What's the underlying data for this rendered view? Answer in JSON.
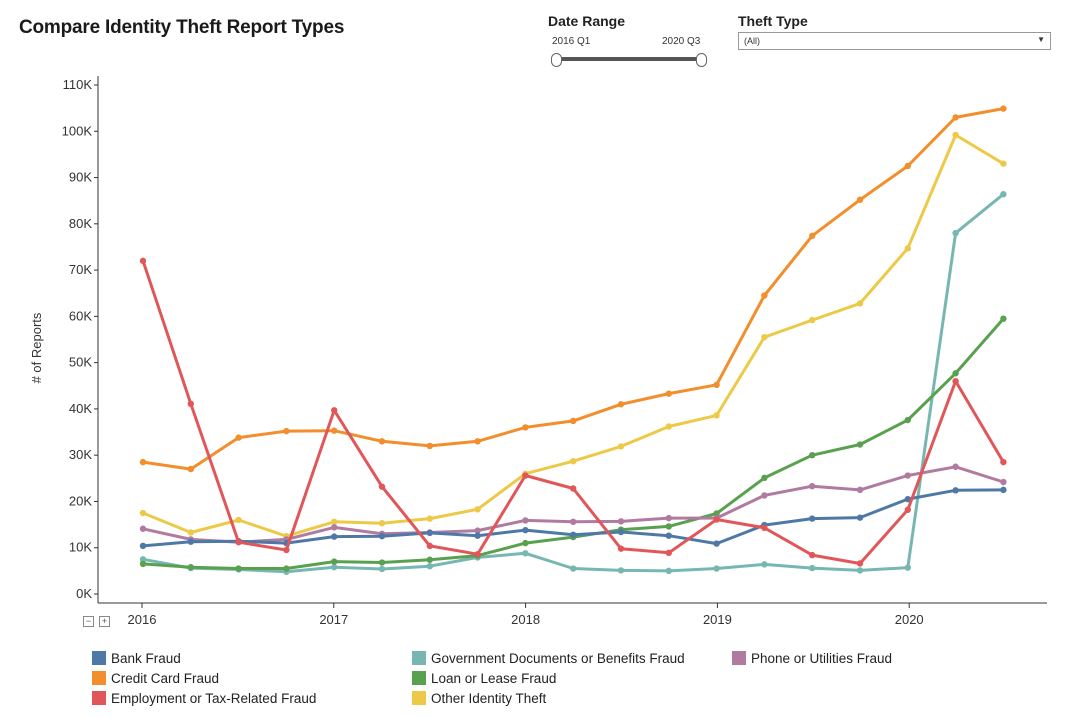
{
  "title": "Compare Identity Theft Report Types",
  "controls": {
    "date_range_label": "Date Range",
    "range_start": "2016 Q1",
    "range_end": "2020 Q3",
    "theft_type_label": "Theft Type",
    "theft_type_value": "(All)"
  },
  "chart_data": {
    "type": "line",
    "ylabel": "# of Reports",
    "xlabel": "",
    "ylim": [
      0,
      110000
    ],
    "y_ticks": [
      0,
      10000,
      20000,
      30000,
      40000,
      50000,
      60000,
      70000,
      80000,
      90000,
      100000,
      110000
    ],
    "y_tick_labels": [
      "0K",
      "10K",
      "20K",
      "30K",
      "40K",
      "50K",
      "60K",
      "70K",
      "80K",
      "90K",
      "100K",
      "110K"
    ],
    "x_tick_labels": [
      "2016",
      "2017",
      "2018",
      "2019",
      "2020"
    ],
    "x": [
      "2016 Q1",
      "2016 Q2",
      "2016 Q3",
      "2016 Q4",
      "2017 Q1",
      "2017 Q2",
      "2017 Q3",
      "2017 Q4",
      "2018 Q1",
      "2018 Q2",
      "2018 Q3",
      "2018 Q4",
      "2019 Q1",
      "2019 Q2",
      "2019 Q3",
      "2019 Q4",
      "2020 Q1",
      "2020 Q2",
      "2020 Q3"
    ],
    "grid": false,
    "legend_position": "bottom",
    "series": [
      {
        "name": "Credit Card Fraud",
        "color": "#f28e2b",
        "values": [
          28500,
          27000,
          33800,
          35200,
          35300,
          33000,
          32000,
          33000,
          36000,
          37400,
          41000,
          43300,
          45200,
          64500,
          77400,
          85200,
          92500,
          103000,
          104900
        ]
      },
      {
        "name": "Other Identity Theft",
        "color": "#edc948",
        "values": [
          17500,
          13300,
          16000,
          12500,
          15600,
          15300,
          16300,
          18300,
          26000,
          28700,
          31900,
          36200,
          38600,
          55500,
          59200,
          62800,
          74700,
          99200,
          93000
        ]
      },
      {
        "name": "Government Documents or Benefits Fraud",
        "color": "#76b7b2",
        "values": [
          7500,
          5600,
          5300,
          4800,
          5800,
          5400,
          6000,
          7900,
          8800,
          5500,
          5100,
          5000,
          5500,
          6400,
          5600,
          5100,
          5700,
          78000,
          86400
        ]
      },
      {
        "name": "Loan or Lease Fraud",
        "color": "#59a14f",
        "values": [
          6500,
          5800,
          5500,
          5500,
          7000,
          6800,
          7400,
          8300,
          11000,
          12300,
          13900,
          14600,
          17400,
          25100,
          30000,
          32300,
          37600,
          47700,
          59500
        ]
      },
      {
        "name": "Phone or Utilities Fraud",
        "color": "#b07aa1",
        "values": [
          14100,
          11800,
          11200,
          11800,
          14400,
          13000,
          13300,
          13700,
          15900,
          15600,
          15700,
          16400,
          16400,
          21300,
          23300,
          22500,
          25600,
          27500,
          24200
        ]
      },
      {
        "name": "Bank Fraud",
        "color": "#4e79a7",
        "values": [
          10400,
          11300,
          11400,
          11000,
          12400,
          12500,
          13200,
          12600,
          13800,
          12800,
          13400,
          12600,
          10900,
          14900,
          16300,
          16500,
          20500,
          22400,
          22500
        ]
      },
      {
        "name": "Employment or Tax-Related Fraud",
        "color": "#e15759",
        "values": [
          72000,
          41100,
          11200,
          9500,
          39700,
          23200,
          10400,
          8600,
          25600,
          22800,
          9800,
          8900,
          16100,
          14300,
          8400,
          6600,
          18200,
          46000,
          28500
        ]
      }
    ]
  },
  "legend": {
    "items": [
      {
        "label": "Bank Fraud",
        "color": "#4e79a7"
      },
      {
        "label": "Credit Card Fraud",
        "color": "#f28e2b"
      },
      {
        "label": "Employment or Tax-Related Fraud",
        "color": "#e15759"
      },
      {
        "label": "Government Documents or Benefits Fraud",
        "color": "#76b7b2"
      },
      {
        "label": "Loan or Lease Fraud",
        "color": "#59a14f"
      },
      {
        "label": "Other Identity Theft",
        "color": "#edc948"
      },
      {
        "label": "Phone or Utilities Fraud",
        "color": "#b07aa1"
      }
    ]
  }
}
